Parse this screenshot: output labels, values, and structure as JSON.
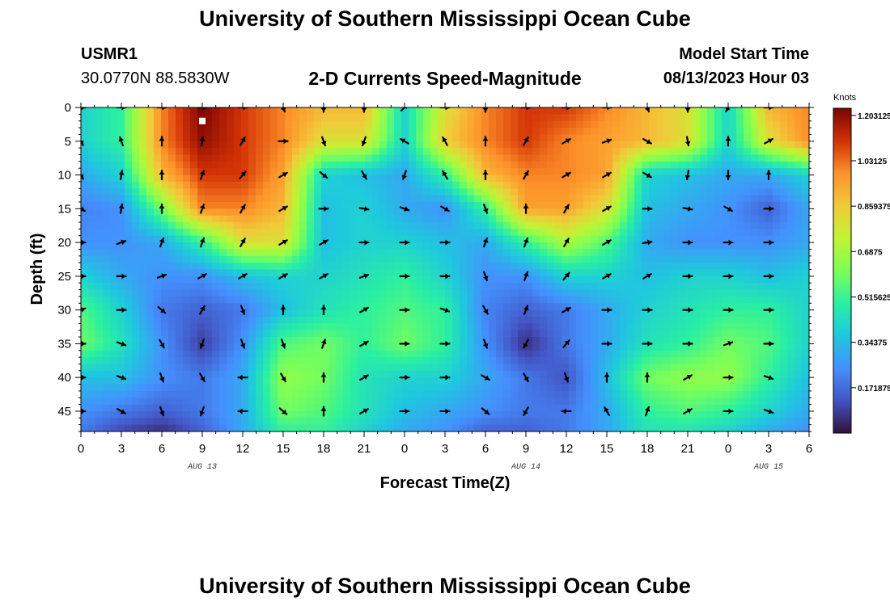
{
  "header": {
    "title": "University of Southern Mississippi Ocean Cube",
    "station_id": "USMR1",
    "location": "30.0770N  88.5830W",
    "subtitle": "2-D Currents Speed-Magnitude",
    "model_start_label": "Model Start Time",
    "model_start_value": "08/13/2023 Hour 03"
  },
  "footer": {
    "title": "University of Southern Mississippi Ocean Cube"
  },
  "chart_data": {
    "type": "heatmap",
    "xlabel": "Forecast Time(Z)",
    "ylabel": "Depth (ft)",
    "x_tick_labels": [
      "0",
      "3",
      "6",
      "9",
      "12",
      "15",
      "18",
      "21",
      "0",
      "3",
      "6",
      "9",
      "12",
      "15",
      "18",
      "21",
      "0",
      "3",
      "6"
    ],
    "x_date_labels": [
      {
        "label": "AUG 13",
        "at_hour": 9
      },
      {
        "label": "AUG 14",
        "at_hour": 33
      },
      {
        "label": "AUG 15",
        "at_hour": 51
      }
    ],
    "xlim_hours": [
      0,
      54
    ],
    "y_ticks": [
      0,
      5,
      10,
      15,
      20,
      25,
      30,
      35,
      40,
      45
    ],
    "ylim": [
      0,
      48
    ],
    "colorbar": {
      "units": "Knots",
      "tick_labels": [
        "1.203125",
        "1.03125",
        "0.859375",
        "0.6875",
        "0.515625",
        "0.34375",
        "0.171875"
      ],
      "tick_values": [
        1.203125,
        1.03125,
        0.859375,
        0.6875,
        0.515625,
        0.34375,
        0.171875
      ],
      "range": [
        0.0,
        1.23
      ]
    },
    "marker": {
      "hour": 9,
      "depth": 2
    },
    "vector_hours": [
      0,
      3,
      6,
      9,
      12,
      15,
      18,
      21,
      24,
      27,
      30,
      33,
      36,
      39,
      42,
      45,
      48,
      51
    ],
    "vector_depths": [
      0,
      5,
      10,
      15,
      20,
      25,
      30,
      35,
      40,
      45
    ],
    "speed_grid_hours": [
      0,
      3,
      6,
      9,
      12,
      15,
      18,
      21,
      24,
      27,
      30,
      33,
      36,
      39,
      42,
      45,
      48,
      51,
      54
    ],
    "speed_grid_depths": [
      0,
      5,
      10,
      15,
      20,
      25,
      30,
      35,
      40,
      45,
      48
    ],
    "speed_knots": [
      [
        0.4,
        0.5,
        1.0,
        1.23,
        1.1,
        1.0,
        0.9,
        0.9,
        0.4,
        0.8,
        1.0,
        1.1,
        1.1,
        1.0,
        0.9,
        0.8,
        0.4,
        0.9,
        1.0
      ],
      [
        0.4,
        0.5,
        1.0,
        1.2,
        1.1,
        1.0,
        0.8,
        0.8,
        0.4,
        0.85,
        1.0,
        1.1,
        1.0,
        0.95,
        0.9,
        0.8,
        0.4,
        0.8,
        1.0
      ],
      [
        0.3,
        0.4,
        0.9,
        1.1,
        1.1,
        0.95,
        0.4,
        0.35,
        0.3,
        0.5,
        0.9,
        1.0,
        1.0,
        0.95,
        0.4,
        0.35,
        0.3,
        0.3,
        0.4
      ],
      [
        0.22,
        0.25,
        0.6,
        1.0,
        1.0,
        0.9,
        0.35,
        0.4,
        0.3,
        0.25,
        0.5,
        0.95,
        0.95,
        0.8,
        0.35,
        0.3,
        0.25,
        0.15,
        0.3
      ],
      [
        0.25,
        0.25,
        0.3,
        0.5,
        0.8,
        0.8,
        0.35,
        0.4,
        0.4,
        0.35,
        0.3,
        0.5,
        0.7,
        0.55,
        0.3,
        0.25,
        0.25,
        0.25,
        0.3
      ],
      [
        0.4,
        0.3,
        0.25,
        0.25,
        0.35,
        0.4,
        0.4,
        0.45,
        0.5,
        0.4,
        0.25,
        0.25,
        0.4,
        0.4,
        0.35,
        0.4,
        0.4,
        0.35,
        0.4
      ],
      [
        0.55,
        0.4,
        0.2,
        0.15,
        0.2,
        0.35,
        0.45,
        0.5,
        0.55,
        0.5,
        0.22,
        0.15,
        0.2,
        0.3,
        0.4,
        0.45,
        0.5,
        0.5,
        0.4
      ],
      [
        0.6,
        0.45,
        0.25,
        0.08,
        0.25,
        0.55,
        0.6,
        0.5,
        0.6,
        0.5,
        0.25,
        0.05,
        0.2,
        0.3,
        0.45,
        0.5,
        0.6,
        0.55,
        0.4
      ],
      [
        0.35,
        0.35,
        0.25,
        0.2,
        0.3,
        0.65,
        0.6,
        0.45,
        0.4,
        0.4,
        0.3,
        0.2,
        0.12,
        0.35,
        0.6,
        0.65,
        0.65,
        0.5,
        0.35
      ],
      [
        0.25,
        0.2,
        0.15,
        0.2,
        0.3,
        0.6,
        0.55,
        0.45,
        0.35,
        0.3,
        0.25,
        0.2,
        0.2,
        0.3,
        0.5,
        0.55,
        0.5,
        0.4,
        0.3
      ],
      [
        0.2,
        0.1,
        0.05,
        0.15,
        0.3,
        0.5,
        0.5,
        0.4,
        0.3,
        0.25,
        0.15,
        0.15,
        0.2,
        0.3,
        0.45,
        0.45,
        0.4,
        0.3,
        0.25
      ]
    ],
    "direction_deg": [
      [
        90,
        90,
        90,
        90,
        90,
        160,
        180,
        180,
        45,
        90,
        180,
        90,
        90,
        90,
        160,
        180,
        210,
        90
      ],
      [
        150,
        340,
        0,
        10,
        30,
        90,
        160,
        200,
        300,
        330,
        0,
        30,
        60,
        70,
        120,
        170,
        0,
        60
      ],
      [
        150,
        10,
        0,
        20,
        40,
        60,
        130,
        150,
        200,
        330,
        0,
        30,
        60,
        60,
        120,
        190,
        180,
        0
      ],
      [
        120,
        10,
        0,
        20,
        30,
        60,
        90,
        100,
        110,
        120,
        160,
        0,
        30,
        60,
        90,
        100,
        120,
        90
      ],
      [
        90,
        70,
        20,
        20,
        30,
        60,
        60,
        90,
        90,
        90,
        20,
        20,
        30,
        60,
        80,
        90,
        90,
        90
      ],
      [
        90,
        90,
        70,
        60,
        60,
        60,
        60,
        70,
        90,
        90,
        160,
        20,
        40,
        60,
        60,
        90,
        90,
        90
      ],
      [
        70,
        90,
        130,
        30,
        160,
        0,
        0,
        60,
        90,
        110,
        150,
        20,
        60,
        90,
        90,
        90,
        90,
        90
      ],
      [
        90,
        110,
        150,
        200,
        160,
        160,
        20,
        60,
        90,
        90,
        160,
        210,
        40,
        90,
        90,
        90,
        70,
        90
      ],
      [
        90,
        110,
        160,
        150,
        270,
        150,
        0,
        60,
        90,
        90,
        120,
        150,
        160,
        0,
        0,
        60,
        90,
        110
      ],
      [
        90,
        120,
        160,
        200,
        270,
        130,
        0,
        60,
        90,
        90,
        130,
        210,
        270,
        330,
        20,
        60,
        90,
        110
      ]
    ]
  }
}
